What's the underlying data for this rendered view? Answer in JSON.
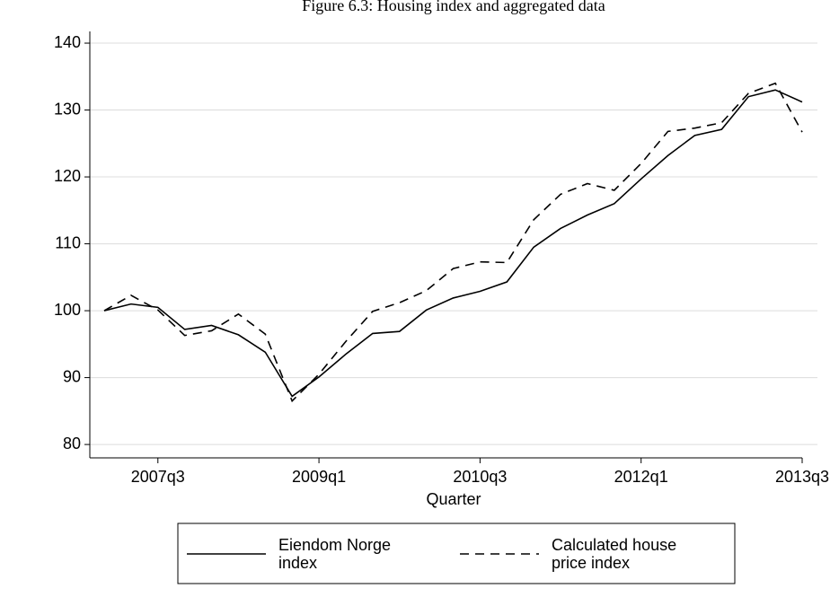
{
  "chart_data": {
    "type": "line",
    "title": "Figure 6.3: Housing index and aggregated data",
    "x_label": "Quarter",
    "categories": [
      null,
      null,
      "2007q3",
      null,
      null,
      null,
      null,
      null,
      "2009q1",
      null,
      null,
      null,
      null,
      null,
      "2010q3",
      null,
      null,
      null,
      null,
      null,
      "2012q1",
      null,
      null,
      null,
      null,
      null,
      "2013q3"
    ],
    "series": [
      {
        "name": "Eiendom Norge index",
        "color": "#000000",
        "style": "solid",
        "values": [
          100,
          101,
          100.5,
          97.2,
          97.8,
          96.4,
          93.8,
          87.2,
          90.1,
          93.5,
          96.6,
          96.9,
          100.1,
          101.9,
          102.9,
          104.3,
          109.5,
          112.3,
          114.3,
          116,
          119.7,
          123.2,
          126.2,
          127.1,
          132,
          133,
          131.2
        ]
      },
      {
        "name": "Calculated house price index",
        "color": "#000000",
        "style": "dashed",
        "values": [
          100,
          102.3,
          100.1,
          96.3,
          97,
          99.5,
          96.5,
          86.5,
          90.5,
          95.4,
          99.9,
          101.2,
          103,
          106.3,
          107.3,
          107.2,
          113.6,
          117.4,
          119,
          118,
          122,
          126.8,
          127.3,
          128.1,
          132.5,
          134,
          126.7
        ]
      }
    ],
    "ylim": [
      78,
      141.75
    ],
    "yticks": [
      80,
      90,
      100,
      110,
      120,
      130,
      140
    ],
    "grid": true,
    "legend": "bottom"
  }
}
